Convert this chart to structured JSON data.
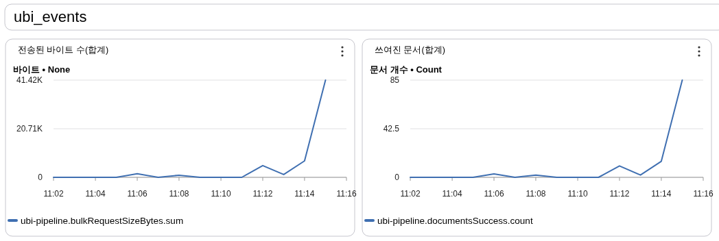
{
  "chart_data": [
    {
      "type": "other",
      "title": "ubi_events"
    },
    {
      "type": "line",
      "title": "전송된 바이트 수(합계)",
      "ylabel": "바이트 • None",
      "x": [
        11.0333,
        11.05,
        11.0667,
        11.0833,
        11.1,
        11.1167,
        11.1333,
        11.15,
        11.1667,
        11.1833,
        11.2,
        11.2167,
        11.2333,
        11.25
      ],
      "series": [
        {
          "name": "ubi-pipeline.bulkRequestSizeBytes.sum",
          "color": "#3f6fb1",
          "values": [
            0,
            0,
            0,
            0,
            1500,
            0,
            900,
            0,
            0,
            0,
            5000,
            1200,
            7000,
            41420
          ]
        }
      ],
      "xlim": [
        11.0333,
        11.2667
      ],
      "xticks": [
        {
          "value": 11.0333,
          "label": "11:02"
        },
        {
          "value": 11.0667,
          "label": "11:04"
        },
        {
          "value": 11.1,
          "label": "11:06"
        },
        {
          "value": 11.1333,
          "label": "11:08"
        },
        {
          "value": 11.1667,
          "label": "11:10"
        },
        {
          "value": 11.2,
          "label": "11:12"
        },
        {
          "value": 11.2333,
          "label": "11:14"
        },
        {
          "value": 11.2667,
          "label": "11:16"
        }
      ],
      "ylim": [
        0,
        41420
      ],
      "yticks": [
        0,
        {
          "value": 20710,
          "label": "20.71K"
        },
        {
          "value": 41420,
          "label": "41.42K"
        }
      ],
      "grid": "y",
      "legend": "bottom",
      "marker": "none",
      "line_style": "solid"
    },
    {
      "type": "line",
      "title": "쓰여진 문서(합계)",
      "ylabel": "문서 개수 • Count",
      "x": [
        11.0333,
        11.05,
        11.0667,
        11.0833,
        11.1,
        11.1167,
        11.1333,
        11.15,
        11.1667,
        11.1833,
        11.2,
        11.2167,
        11.2333,
        11.25
      ],
      "series": [
        {
          "name": "ubi-pipeline.documentsSuccess.count",
          "color": "#3f6fb1",
          "values": [
            0,
            0,
            0,
            0,
            3,
            0,
            2,
            0,
            0,
            0,
            10,
            2,
            14,
            85
          ]
        }
      ],
      "xlim": [
        11.0333,
        11.2667
      ],
      "xticks": [
        {
          "value": 11.0333,
          "label": "11:02"
        },
        {
          "value": 11.0667,
          "label": "11:04"
        },
        {
          "value": 11.1,
          "label": "11:06"
        },
        {
          "value": 11.1333,
          "label": "11:08"
        },
        {
          "value": 11.1667,
          "label": "11:10"
        },
        {
          "value": 11.2,
          "label": "11:12"
        },
        {
          "value": 11.2333,
          "label": "11:14"
        },
        {
          "value": 11.2667,
          "label": "11:16"
        }
      ],
      "ylim": [
        0,
        85
      ],
      "yticks": [
        0,
        42.5,
        85
      ],
      "grid": "y",
      "legend": "bottom",
      "marker": "none",
      "line_style": "solid"
    }
  ]
}
